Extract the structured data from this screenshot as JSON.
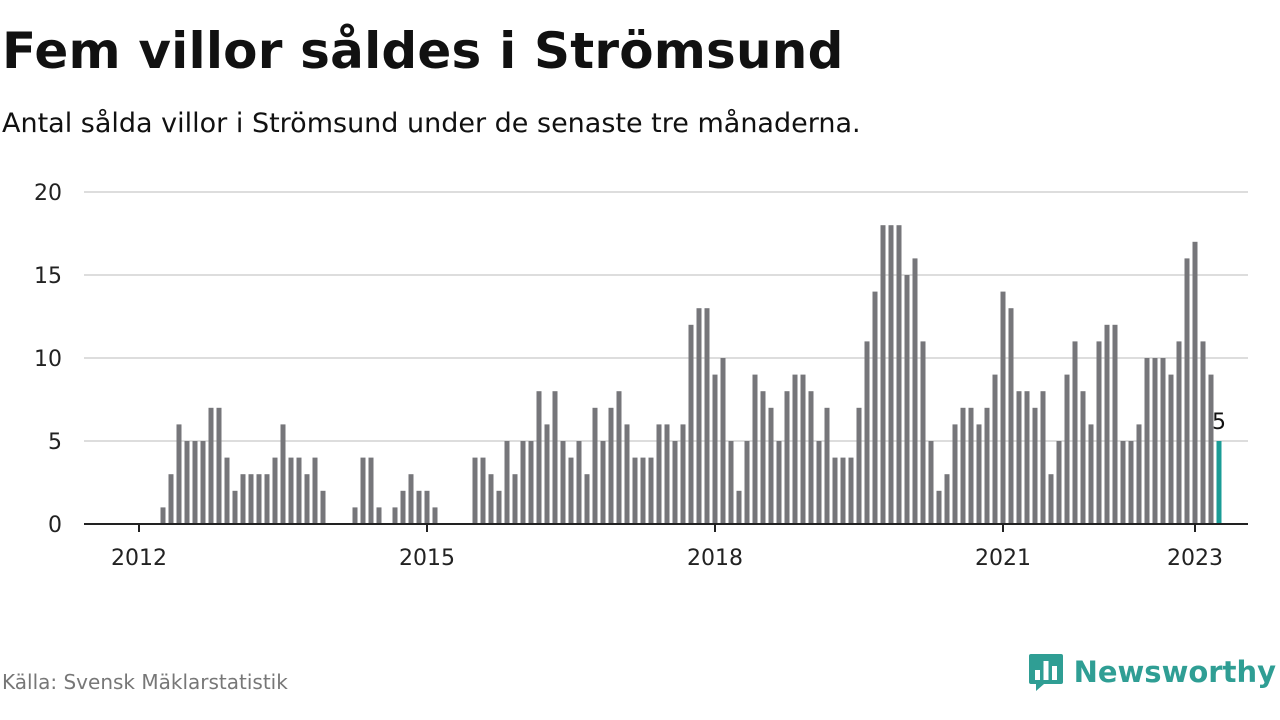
{
  "header": {
    "title": "Fem villor såldes i Strömsund",
    "subtitle": "Antal sålda villor i Strömsund under de senaste tre månaderna."
  },
  "footer": {
    "source": "Källa: Svensk Mäklarstatistik",
    "brand": "Newsworthy",
    "brand_icon": "newsworthy-logo-icon"
  },
  "colors": {
    "bar": "#76767a",
    "highlight": "#1a9c96",
    "grid": "#dddddd",
    "axis": "#222222",
    "brand": "#2f9e94"
  },
  "chart_data": {
    "type": "bar",
    "title": "Fem villor såldes i Strömsund",
    "xlabel": "",
    "ylabel": "",
    "ylim": [
      0,
      20
    ],
    "yticks": [
      0,
      5,
      10,
      15,
      20
    ],
    "xticks": [
      "2012",
      "2015",
      "2018",
      "2021",
      "2023"
    ],
    "grid": "horizontal",
    "start": "2012-01",
    "end": "2023-01",
    "highlight_label": "5",
    "values": [
      0,
      0,
      0,
      1,
      3,
      6,
      5,
      5,
      5,
      7,
      7,
      4,
      2,
      3,
      3,
      3,
      3,
      4,
      6,
      4,
      4,
      3,
      4,
      2,
      0,
      0,
      0,
      1,
      4,
      4,
      1,
      0,
      1,
      2,
      3,
      2,
      2,
      1,
      0,
      0,
      0,
      0,
      4,
      4,
      3,
      2,
      5,
      3,
      5,
      5,
      8,
      6,
      8,
      5,
      4,
      5,
      3,
      7,
      5,
      7,
      8,
      6,
      4,
      4,
      4,
      6,
      6,
      5,
      6,
      12,
      13,
      13,
      9,
      10,
      5,
      2,
      5,
      9,
      8,
      7,
      5,
      8,
      9,
      9,
      8,
      5,
      7,
      4,
      4,
      4,
      7,
      11,
      14,
      18,
      18,
      18,
      15,
      16,
      11,
      5,
      2,
      3,
      6,
      7,
      7,
      6,
      7,
      9,
      14,
      13,
      8,
      8,
      7,
      8,
      3,
      5,
      9,
      11,
      8,
      6,
      11,
      12,
      12,
      5,
      5,
      6,
      10,
      10,
      10,
      9,
      11,
      16,
      17,
      11,
      9,
      5
    ]
  }
}
